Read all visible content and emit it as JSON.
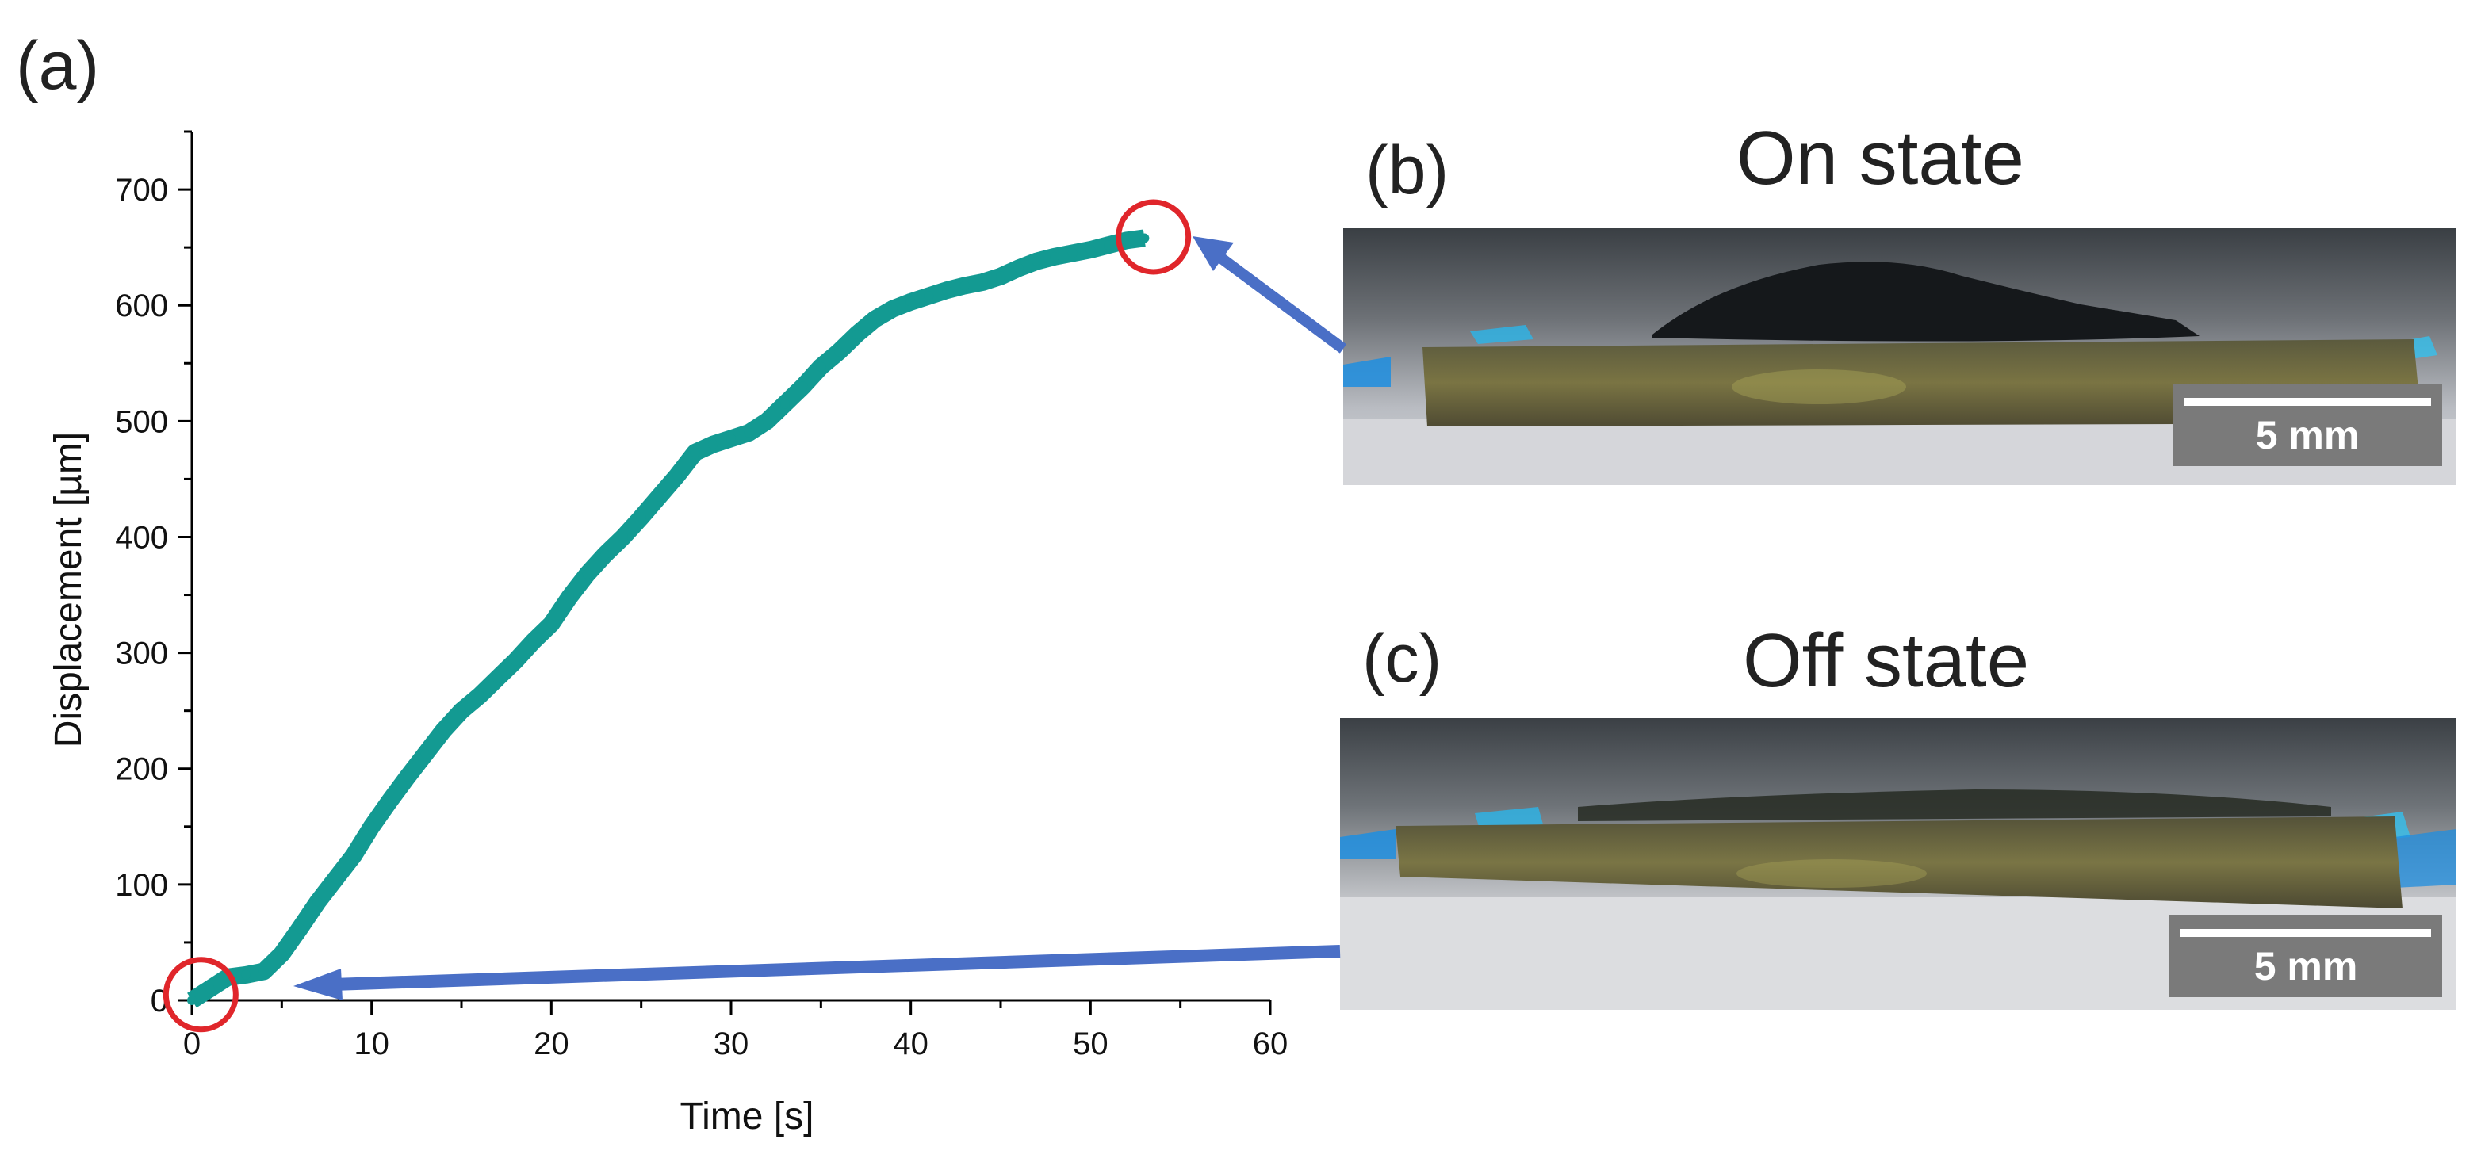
{
  "panels": {
    "a": "(a)",
    "b": "(b)",
    "c": "(c)"
  },
  "photos": {
    "on": {
      "title": "On state",
      "scale_label": "5 mm"
    },
    "off": {
      "title": "Off state",
      "scale_label": "5 mm"
    }
  },
  "colors": {
    "series": "#139a92",
    "marker_circle": "#e0262b",
    "arrow": "#4a6fc6"
  },
  "chart_data": {
    "type": "line",
    "title": "",
    "xlabel": "Time [s]",
    "ylabel": "Displacement [µm]",
    "xlim": [
      0,
      60
    ],
    "ylim": [
      0,
      750
    ],
    "xticks": [
      0,
      10,
      20,
      30,
      40,
      50,
      60
    ],
    "yticks": [
      0,
      100,
      200,
      300,
      400,
      500,
      600,
      700
    ],
    "grid": false,
    "legend": "none",
    "series": [
      {
        "x": [
          0,
          1,
          2,
          3,
          4,
          5,
          6,
          7,
          8,
          9,
          10,
          11,
          12,
          13,
          14,
          15,
          16,
          17,
          18,
          19,
          20,
          21,
          22,
          23,
          24,
          25,
          26,
          27,
          28,
          29,
          30,
          31,
          32,
          33,
          34,
          35,
          36,
          37,
          38,
          39,
          40,
          41,
          42,
          43,
          44,
          45,
          46,
          47,
          48,
          49,
          50,
          51,
          52,
          53
        ],
        "y": [
          0,
          10,
          20,
          22,
          25,
          40,
          62,
          85,
          105,
          125,
          150,
          172,
          193,
          213,
          233,
          250,
          263,
          278,
          293,
          310,
          325,
          348,
          368,
          385,
          400,
          417,
          435,
          453,
          473,
          480,
          485,
          490,
          500,
          515,
          530,
          547,
          560,
          575,
          588,
          597,
          603,
          608,
          613,
          617,
          620,
          625,
          632,
          638,
          642,
          645,
          648,
          652,
          656,
          658
        ]
      }
    ],
    "annotations": [
      {
        "type": "circle",
        "x": 0.5,
        "y": 5
      },
      {
        "type": "circle",
        "x": 53.5,
        "y": 659
      }
    ]
  }
}
